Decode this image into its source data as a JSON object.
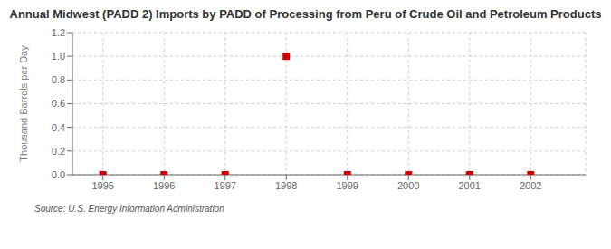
{
  "chart_data": {
    "type": "scatter",
    "title": "Annual Midwest (PADD 2) Imports by PADD of Processing from Peru of Crude Oil and Petroleum Products",
    "ylabel": "Thousand Barrels per Day",
    "annotations": [
      "Source: U.S. Energy Information Administration"
    ],
    "x": [
      1995,
      1996,
      1997,
      1998,
      1999,
      2000,
      2001,
      2002
    ],
    "values": [
      0,
      0,
      0,
      1.0,
      0,
      0,
      0,
      0
    ],
    "color": "#cc0000",
    "marker": "square",
    "xlim": [
      1994.5,
      2002.9
    ],
    "ylim": [
      0,
      1.2
    ],
    "xticks": [
      1995,
      1996,
      1997,
      1998,
      1999,
      2000,
      2001,
      2002
    ],
    "yticks": [
      {
        "value": 0,
        "label": "0.0"
      },
      0.2,
      0.4,
      0.6,
      0.8,
      {
        "value": 1,
        "label": "1.0"
      },
      1.2
    ],
    "grid": true
  }
}
